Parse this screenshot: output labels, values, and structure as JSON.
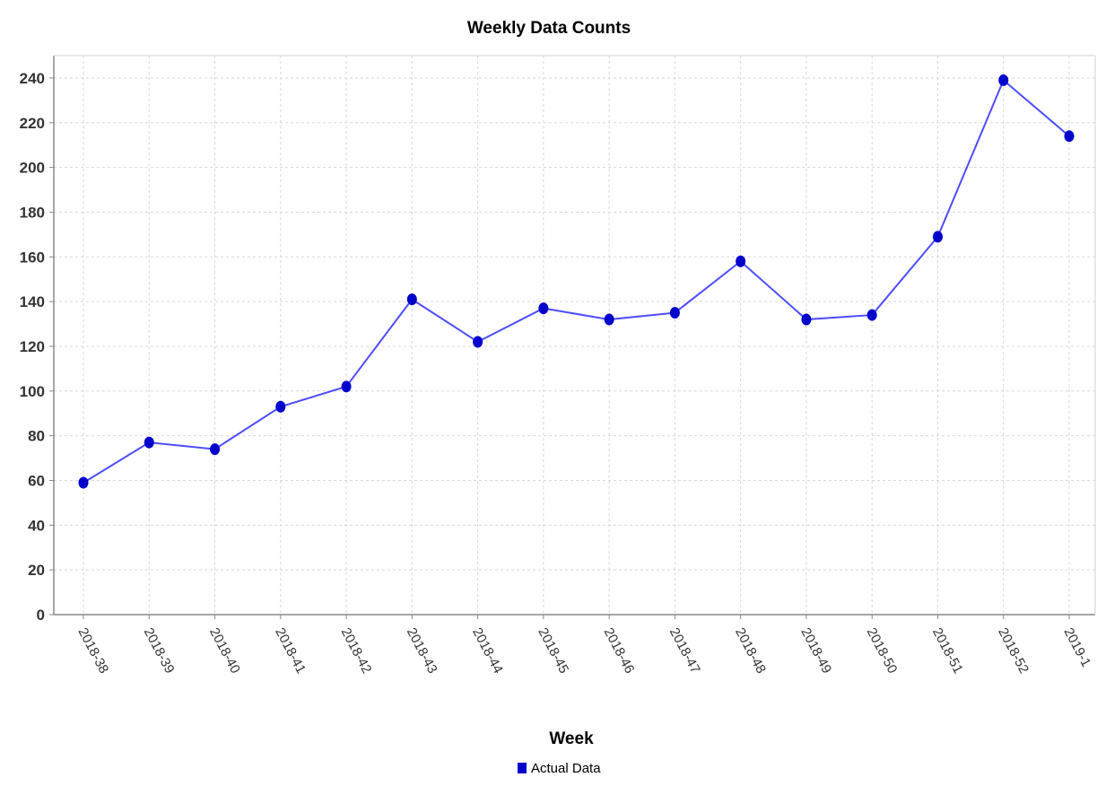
{
  "chart_data": {
    "type": "line",
    "title": "Weekly Data Counts",
    "xlabel": "Week",
    "ylabel": "",
    "categories": [
      "2018-38",
      "2018-39",
      "2018-40",
      "2018-41",
      "2018-42",
      "2018-43",
      "2018-44",
      "2018-45",
      "2018-46",
      "2018-47",
      "2018-48",
      "2018-49",
      "2018-50",
      "2018-51",
      "2018-52",
      "2019-1"
    ],
    "series": [
      {
        "name": "Actual Data",
        "values": [
          59,
          77,
          74,
          93,
          102,
          141,
          122,
          137,
          132,
          135,
          158,
          132,
          134,
          169,
          239,
          214
        ],
        "color": "#0000cc"
      }
    ],
    "ylim": [
      0,
      250
    ],
    "yticks": [
      0,
      20,
      40,
      60,
      80,
      100,
      120,
      140,
      160,
      180,
      200,
      220,
      240
    ],
    "grid": true,
    "legend": "bottom-center",
    "line_color": "#4d4dff"
  }
}
